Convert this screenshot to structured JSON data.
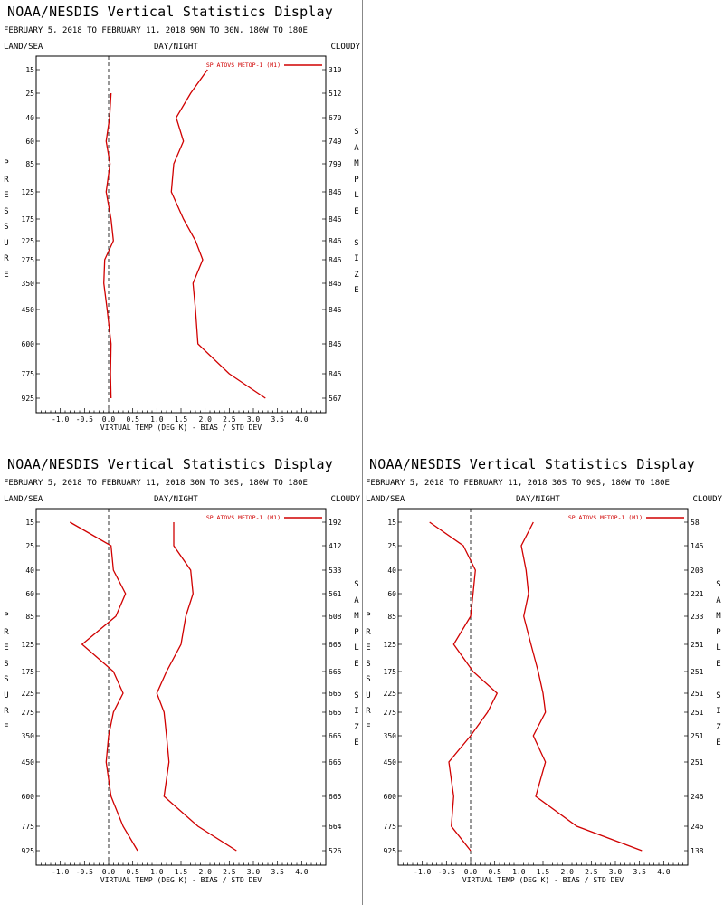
{
  "common": {
    "land_label": "LAND/SEA",
    "day_label": "DAY/NIGHT",
    "cloud_label": "CLOUDY",
    "pressure_label": "PRESSURE",
    "sample_label": "SAMPLE SIZE",
    "legend_label": "SP ATOVS METOP-1 (M1)",
    "line_color": "#d00000"
  },
  "chart_data": [
    {
      "type": "line",
      "title": "NOAA/NESDIS Vertical Statistics Display",
      "subtitle": "FEBRUARY 5, 2018 TO FEBRUARY 11, 2018 90N TO 30N, 180W TO 180E",
      "xlabel": "VIRTUAL TEMP (DEG K) - BIAS / STD DEV",
      "xlim": [
        -1.5,
        4.5
      ],
      "x_ticks": [
        "-1.0",
        "-0.5",
        "0.0",
        "0.5",
        "1.0",
        "1.5",
        "2.0",
        "2.5",
        "3.0",
        "3.5",
        "4.0"
      ],
      "pressure_levels": [
        "15",
        "25",
        "40",
        "60",
        "85",
        "125",
        "175",
        "225",
        "275",
        "350",
        "450",
        "600",
        "775",
        "925"
      ],
      "sample_size": [
        "310",
        "512",
        "670",
        "749",
        "799",
        "846",
        "846",
        "846",
        "846",
        "846",
        "846",
        "845",
        "845",
        "567"
      ],
      "series": [
        {
          "role": "bias",
          "values": [
            null,
            0.05,
            0.02,
            -0.05,
            0.03,
            -0.05,
            0.05,
            0.1,
            -0.08,
            -0.1,
            -0.03,
            0.05,
            0.04,
            0.05
          ]
        },
        {
          "role": "stddev",
          "values": [
            2.05,
            1.7,
            1.4,
            1.55,
            1.35,
            1.3,
            1.55,
            1.8,
            1.95,
            1.75,
            1.8,
            1.85,
            2.5,
            3.25
          ]
        }
      ],
      "legend": "top-right"
    },
    {
      "type": "line",
      "title": "NOAA/NESDIS Vertical Statistics Display",
      "subtitle": "FEBRUARY 5, 2018 TO FEBRUARY 11, 2018 30N TO 30S, 180W TO 180E",
      "xlabel": "VIRTUAL TEMP (DEG K) - BIAS / STD DEV",
      "xlim": [
        -1.5,
        4.5
      ],
      "x_ticks": [
        "-1.0",
        "-0.5",
        "0.0",
        "0.5",
        "1.0",
        "1.5",
        "2.0",
        "2.5",
        "3.0",
        "3.5",
        "4.0"
      ],
      "pressure_levels": [
        "15",
        "25",
        "40",
        "60",
        "85",
        "125",
        "175",
        "225",
        "275",
        "350",
        "450",
        "600",
        "775",
        "925"
      ],
      "sample_size": [
        "192",
        "412",
        "533",
        "561",
        "608",
        "665",
        "665",
        "665",
        "665",
        "665",
        "665",
        "665",
        "664",
        "526"
      ],
      "series": [
        {
          "role": "bias",
          "values": [
            -0.8,
            0.05,
            0.1,
            0.35,
            0.15,
            -0.55,
            0.1,
            0.3,
            0.1,
            0.0,
            -0.05,
            0.05,
            0.3,
            0.6
          ]
        },
        {
          "role": "stddev",
          "values": [
            1.35,
            1.35,
            1.7,
            1.75,
            1.6,
            1.5,
            1.2,
            1.0,
            1.15,
            1.2,
            1.25,
            1.15,
            1.85,
            2.65
          ]
        }
      ],
      "legend": "top-right"
    },
    {
      "type": "line",
      "title": "NOAA/NESDIS Vertical Statistics Display",
      "subtitle": "FEBRUARY 5, 2018 TO FEBRUARY 11, 2018 30S TO 90S, 180W TO 180E",
      "xlabel": "VIRTUAL TEMP (DEG K) - BIAS / STD DEV",
      "xlim": [
        -1.5,
        4.5
      ],
      "x_ticks": [
        "-1.0",
        "-0.5",
        "0.0",
        "0.5",
        "1.0",
        "1.5",
        "2.0",
        "2.5",
        "3.0",
        "3.5",
        "4.0"
      ],
      "pressure_levels": [
        "15",
        "25",
        "40",
        "60",
        "85",
        "125",
        "175",
        "225",
        "275",
        "350",
        "450",
        "600",
        "775",
        "925"
      ],
      "sample_size": [
        "58",
        "145",
        "203",
        "221",
        "233",
        "251",
        "251",
        "251",
        "251",
        "251",
        "251",
        "246",
        "246",
        "138"
      ],
      "series": [
        {
          "role": "bias",
          "values": [
            -0.85,
            -0.15,
            0.1,
            0.05,
            0.0,
            -0.35,
            0.05,
            0.55,
            0.35,
            0.0,
            -0.45,
            -0.35,
            -0.4,
            0.0
          ]
        },
        {
          "role": "stddev",
          "values": [
            1.3,
            1.05,
            1.15,
            1.2,
            1.1,
            1.25,
            1.4,
            1.5,
            1.55,
            1.3,
            1.55,
            1.35,
            2.2,
            3.55
          ]
        }
      ],
      "legend": "top-right"
    }
  ]
}
